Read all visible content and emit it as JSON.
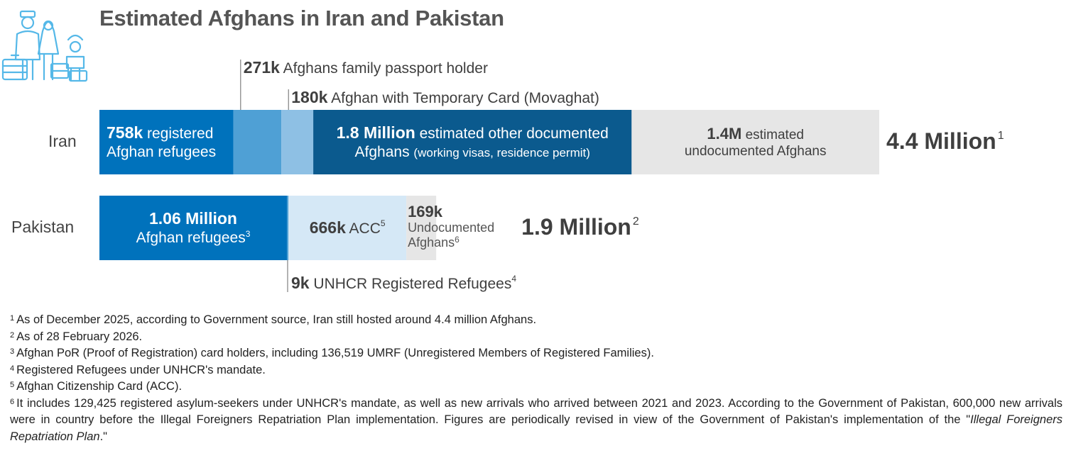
{
  "title": "Estimated Afghans in Iran and Pakistan",
  "icon_name": "family-travellers-icon",
  "colors": {
    "registered_blue": "#0072bc",
    "mid_blue": "#4fa0d5",
    "light_blue": "#8ec0e4",
    "dark_blue": "#0b5a8e",
    "undocumented_grey": "#e6e6e6",
    "pale_blue": "#d5e8f6"
  },
  "chart_data": {
    "type": "bar",
    "orientation": "horizontal",
    "stacked": true,
    "categories": [
      "Iran",
      "Pakistan"
    ],
    "series": [
      {
        "key": "iran_registered",
        "category": "Iran",
        "value": 758000,
        "color": "#0072bc",
        "label_bold": "758k",
        "label_rest": "registered",
        "label_line2": "Afghan refugees"
      },
      {
        "key": "iran_family_passport",
        "category": "Iran",
        "value": 271000,
        "color": "#4fa0d5",
        "callout_bold": "271k",
        "callout_text": "Afghans family passport holder"
      },
      {
        "key": "iran_temporary_card",
        "category": "Iran",
        "value": 180000,
        "color": "#8ec0e4",
        "callout_bold": "180k",
        "callout_text": "Afghan with Temporary Card (Movaghat)"
      },
      {
        "key": "iran_other_documented",
        "category": "Iran",
        "value": 1800000,
        "color": "#0b5a8e",
        "label_bold": "1.8 Million",
        "label_rest": "estimated other documented",
        "label_line2": "Afghans",
        "label_line2_small": "(working visas, residence permit)"
      },
      {
        "key": "iran_undocumented",
        "category": "Iran",
        "value": 1400000,
        "color": "#e6e6e6",
        "label_bold": "1.4M",
        "label_rest": "estimated",
        "label_line2": "undocumented Afghans"
      },
      {
        "key": "pak_refugees",
        "category": "Pakistan",
        "value": 1060000,
        "color": "#0072bc",
        "label_bold": "1.06 Million",
        "label_line2": "Afghan refugees",
        "label_line2_sup": "3"
      },
      {
        "key": "pak_unhcr_registered",
        "category": "Pakistan",
        "value": 9000,
        "color": "#4fa0d5",
        "callout_bold": "9k",
        "callout_text": "UNHCR Registered Refugees",
        "callout_sup": "4"
      },
      {
        "key": "pak_acc",
        "category": "Pakistan",
        "value": 666000,
        "color": "#d5e8f6",
        "label_bold": "666k",
        "label_rest": "ACC",
        "label_sup": "5"
      },
      {
        "key": "pak_undocumented",
        "category": "Pakistan",
        "value": 169000,
        "color": "#e6e6e6",
        "label_bold": "169k",
        "label_line2": "Undocumented",
        "label_line3": "Afghans",
        "label_line3_sup": "6"
      }
    ],
    "totals": [
      {
        "category": "Iran",
        "label": "4.4 Million",
        "sup": "1"
      },
      {
        "category": "Pakistan",
        "label": "1.9 Million",
        "sup": "2"
      }
    ],
    "xlabel": "",
    "ylabel": ""
  },
  "footnotes": [
    {
      "num": "1",
      "text": "As of December 2025, according to Government source, Iran still hosted around 4.4 million Afghans."
    },
    {
      "num": "2",
      "text": "As of 28 February 2026."
    },
    {
      "num": "3",
      "text": "Afghan PoR (Proof of Registration) card holders, including 136,519 UMRF (Unregistered Members of Registered Families)."
    },
    {
      "num": "4",
      "text": "Registered Refugees under UNHCR's mandate."
    },
    {
      "num": "5",
      "text": "Afghan Citizenship Card (ACC)."
    },
    {
      "num": "6",
      "text": "It includes 129,425 registered asylum-seekers under UNHCR's mandate, as well as new arrivals who arrived between 2021 and 2023. According to the Government of Pakistan, 600,000 new arrivals were in country before the Illegal Foreigners Repatriation Plan implementation. Figures are periodically revised in view of the Government of Pakistan's implementation of the \"",
      "italic": "Illegal Foreigners Repatriation Plan",
      "text_end": ".\""
    }
  ]
}
